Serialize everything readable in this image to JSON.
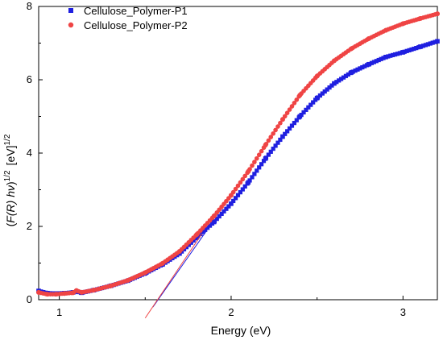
{
  "chart_data": {
    "type": "scatter",
    "xlabel": "Energy (eV)",
    "ylabel": "(F(R) hν)^1/2 [eV]^1/2",
    "ylabel_parts": {
      "open_paren": "(",
      "f": "F",
      "f_open": "(",
      "r": "R",
      "f_close": ")",
      "space": " ",
      "h": "h",
      "nu": "ν",
      "close_paren": ")",
      "exp1": "1/2",
      "unit": "[eV]",
      "exp2": "1/2"
    },
    "xlim": [
      0.88,
      3.2
    ],
    "ylim": [
      0,
      8
    ],
    "x_ticks": [
      1,
      2,
      3
    ],
    "x_tick_labels": [
      "1",
      "2",
      "3"
    ],
    "y_ticks": [
      0,
      2,
      4,
      6,
      8
    ],
    "y_tick_labels": [
      "0",
      "2",
      "4",
      "6",
      "8"
    ],
    "legend_position": "top-left",
    "series": [
      {
        "name": "Cellulose_Polymer-P1",
        "color": "#1f1fe0",
        "marker": "square",
        "x": [
          0.88,
          0.93,
          0.98,
          1.03,
          1.08,
          1.1,
          1.13,
          1.2,
          1.3,
          1.4,
          1.5,
          1.6,
          1.7,
          1.8,
          1.9,
          2.0,
          2.1,
          2.2,
          2.3,
          2.4,
          2.5,
          2.6,
          2.7,
          2.8,
          2.9,
          3.0,
          3.1,
          3.2
        ],
        "y": [
          0.24,
          0.18,
          0.17,
          0.18,
          0.2,
          0.22,
          0.19,
          0.26,
          0.38,
          0.52,
          0.72,
          0.96,
          1.26,
          1.7,
          2.12,
          2.62,
          3.2,
          3.85,
          4.45,
          5.0,
          5.5,
          5.9,
          6.2,
          6.42,
          6.62,
          6.75,
          6.9,
          7.05
        ]
      },
      {
        "name": "Cellulose_Polymer-P2",
        "color": "#ef4444",
        "marker": "circle",
        "x": [
          0.88,
          0.93,
          0.98,
          1.03,
          1.08,
          1.1,
          1.13,
          1.2,
          1.3,
          1.4,
          1.5,
          1.6,
          1.7,
          1.8,
          1.9,
          2.0,
          2.1,
          2.2,
          2.3,
          2.4,
          2.5,
          2.6,
          2.7,
          2.8,
          2.9,
          3.0,
          3.1,
          3.2
        ],
        "y": [
          0.2,
          0.15,
          0.15,
          0.17,
          0.19,
          0.25,
          0.2,
          0.26,
          0.38,
          0.53,
          0.74,
          0.99,
          1.32,
          1.78,
          2.28,
          2.85,
          3.5,
          4.22,
          4.92,
          5.58,
          6.1,
          6.52,
          6.85,
          7.12,
          7.35,
          7.53,
          7.67,
          7.8
        ]
      }
    ],
    "annotations": [
      {
        "kind": "tangent-line",
        "color": "#1f1fe0",
        "x": [
          1.545,
          1.86
        ],
        "y": [
          -0.2,
          1.9
        ]
      },
      {
        "kind": "tangent-line",
        "color": "#ef4444",
        "x": [
          1.5,
          1.83
        ],
        "y": [
          -0.5,
          1.8
        ]
      }
    ]
  }
}
